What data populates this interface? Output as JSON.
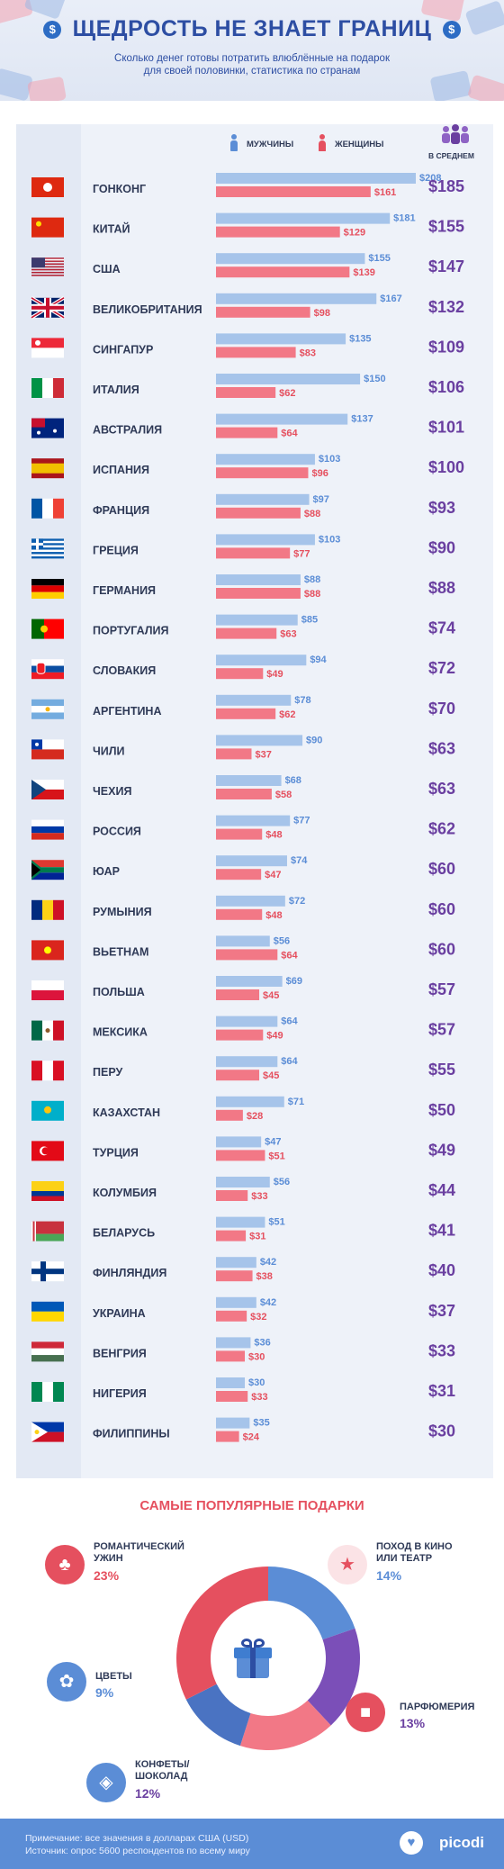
{
  "header": {
    "title": "ЩЕДРОСТЬ НЕ ЗНАЕТ ГРАНИЦ",
    "subtitle_line1": "Сколько денег готовы потратить влюблённые на подарок",
    "subtitle_line2": "для своей половинки, статистика по странам",
    "coin_symbol": "$"
  },
  "legend": {
    "men": "МУЖЧИНЫ",
    "women": "ЖЕНЩИНЫ",
    "average": "В СРЕДНЕМ"
  },
  "colors": {
    "men": "#a6c4ea",
    "women": "#f27886",
    "average": "#6a3fa0",
    "title": "#2d4ea3"
  },
  "chart_data": {
    "type": "bar",
    "orientation": "horizontal",
    "unit": "$",
    "categories": [
      "ГОНКОНГ",
      "КИТАЙ",
      "США",
      "ВЕЛИКОБРИТАНИЯ",
      "СИНГАПУР",
      "ИТАЛИЯ",
      "АВСТРАЛИЯ",
      "ИСПАНИЯ",
      "ФРАНЦИЯ",
      "ГРЕЦИЯ",
      "ГЕРМАНИЯ",
      "ПОРТУГАЛИЯ",
      "СЛОВАКИЯ",
      "АРГЕНТИНА",
      "ЧИЛИ",
      "ЧЕХИЯ",
      "РОССИЯ",
      "ЮАР",
      "РУМЫНИЯ",
      "ВЬЕТНАМ",
      "ПОЛЬША",
      "МЕКСИКА",
      "ПЕРУ",
      "КАЗАХСТАН",
      "ТУРЦИЯ",
      "КОЛУМБИЯ",
      "БЕЛАРУСЬ",
      "ФИНЛЯНДИЯ",
      "УКРАИНА",
      "ВЕНГРИЯ",
      "НИГЕРИЯ",
      "ФИЛИППИНЫ"
    ],
    "series": [
      {
        "name": "МУЖЧИНЫ",
        "values": [
          208,
          181,
          155,
          167,
          135,
          150,
          137,
          103,
          97,
          103,
          88,
          85,
          94,
          78,
          90,
          68,
          77,
          74,
          72,
          56,
          69,
          64,
          64,
          71,
          47,
          56,
          51,
          42,
          42,
          36,
          30,
          35
        ]
      },
      {
        "name": "ЖЕНЩИНЫ",
        "values": [
          161,
          129,
          139,
          98,
          83,
          62,
          64,
          96,
          88,
          77,
          88,
          63,
          49,
          62,
          37,
          58,
          48,
          47,
          48,
          64,
          45,
          49,
          45,
          28,
          51,
          33,
          31,
          38,
          32,
          30,
          33,
          24
        ]
      },
      {
        "name": "В СРЕДНЕМ",
        "values": [
          185,
          155,
          147,
          132,
          109,
          106,
          101,
          100,
          93,
          90,
          88,
          74,
          72,
          70,
          63,
          63,
          62,
          60,
          60,
          60,
          57,
          57,
          55,
          50,
          49,
          44,
          41,
          40,
          37,
          33,
          31,
          30
        ]
      }
    ],
    "flags": [
      "hk",
      "cn",
      "us",
      "gb",
      "sg",
      "it",
      "au",
      "es",
      "fr",
      "gr",
      "de",
      "pt",
      "sk",
      "ar",
      "cl",
      "cz",
      "ru",
      "za",
      "ro",
      "vn",
      "pl",
      "mx",
      "pe",
      "kz",
      "tr",
      "co",
      "by",
      "fi",
      "ua",
      "hu",
      "ng",
      "ph"
    ]
  },
  "gifts": {
    "title": "САМЫЕ ПОПУЛЯРНЫЕ ПОДАРКИ",
    "chart_data": {
      "type": "pie",
      "categories": [
        "ПОХОД В КИНО ИЛИ ТЕАТР",
        "ПАРФЮМЕРИЯ",
        "КОНФЕТЫ/ШОКОЛАД",
        "ЦВЕТЫ",
        "РОМАНТИЧЕСКИЙ УЖИН"
      ],
      "values": [
        14,
        13,
        12,
        9,
        23
      ]
    },
    "items": [
      {
        "label1": "РОМАНТИЧЕСКИЙ",
        "label2": "УЖИН",
        "pct": "23%"
      },
      {
        "label1": "ПОХОД В КИНО",
        "label2": "ИЛИ ТЕАТР",
        "pct": "14%"
      },
      {
        "label1": "ЦВЕТЫ",
        "label2": "",
        "pct": "9%"
      },
      {
        "label1": "ПАРФЮМЕРИЯ",
        "label2": "",
        "pct": "13%"
      },
      {
        "label1": "КОНФЕТЫ/",
        "label2": "ШОКОЛАД",
        "pct": "12%"
      }
    ]
  },
  "footer": {
    "note": "Примечание: все значения в долларах США (USD)",
    "source": "Источник: опрос 5600 респондентов по всему миру",
    "brand": "picodi"
  }
}
